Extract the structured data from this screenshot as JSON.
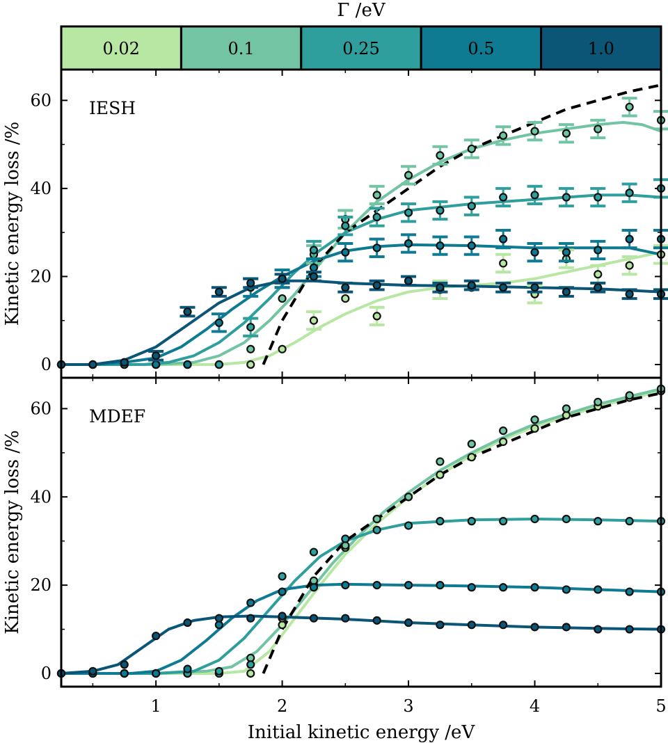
{
  "colorbar": {
    "title": "Γ /eV",
    "entries": [
      {
        "label": "0.02",
        "color": "#b8e6a3"
      },
      {
        "label": "0.1",
        "color": "#72c4a2"
      },
      {
        "label": "0.25",
        "color": "#2e9f9c"
      },
      {
        "label": "0.5",
        "color": "#0e7b92"
      },
      {
        "label": "1.0",
        "color": "#0b5576"
      }
    ]
  },
  "chart_data": [
    {
      "type": "line",
      "panel_label": "IESH",
      "xlabel": "",
      "ylabel": "Kinetic energy loss /%",
      "xlim": [
        0.25,
        5.0
      ],
      "ylim": [
        -3,
        67
      ],
      "xticks": [
        1,
        2,
        3,
        4,
        5
      ],
      "yticks": [
        0,
        20,
        40,
        60
      ],
      "reference_curve": {
        "style": "dashed-black",
        "x": [
          1.85,
          2.0,
          2.25,
          2.5,
          2.75,
          3.0,
          3.25,
          3.5,
          3.75,
          4.0,
          4.25,
          4.5,
          4.75,
          5.0
        ],
        "y": [
          0,
          10,
          22,
          30,
          35,
          40,
          45,
          49,
          52,
          55,
          58,
          60,
          62,
          63.5
        ]
      },
      "series": [
        {
          "name": "0.02",
          "x": [
            0.25,
            0.5,
            0.75,
            1.0,
            1.25,
            1.5,
            1.75,
            2.0,
            2.25,
            2.5,
            2.75,
            3.0,
            3.25,
            3.5,
            3.75,
            4.0,
            4.25,
            4.5,
            4.75,
            5.0
          ],
          "points": [
            0,
            0,
            0,
            0,
            0,
            0,
            0,
            3.5,
            10,
            15,
            11,
            19,
            17,
            17.5,
            23,
            16,
            24,
            20.5,
            22.5,
            25
          ],
          "errors": [
            0,
            0,
            0,
            0,
            0,
            0,
            0,
            0,
            2,
            0,
            2,
            0,
            2,
            0,
            2,
            2,
            2,
            2,
            2,
            2
          ],
          "fit_x": [
            0.25,
            1.0,
            1.5,
            1.7,
            1.9,
            2.1,
            2.3,
            2.5,
            2.75,
            3.0,
            3.25,
            3.5,
            3.75,
            4.0,
            4.25,
            4.5,
            4.75,
            5.0
          ],
          "fit_y": [
            0,
            0,
            0,
            0.5,
            2,
            5,
            8.5,
            11.5,
            14.5,
            16.5,
            17.5,
            18,
            18.5,
            19.5,
            21,
            22.5,
            24,
            25.5
          ]
        },
        {
          "name": "0.1",
          "x": [
            0.25,
            0.5,
            0.75,
            1.0,
            1.25,
            1.5,
            1.75,
            2.0,
            2.25,
            2.5,
            2.75,
            3.0,
            3.25,
            3.5,
            3.75,
            4.0,
            4.25,
            4.5,
            4.75,
            5.0
          ],
          "points": [
            0,
            0,
            0,
            0,
            0,
            0,
            3.5,
            15,
            25,
            33,
            38.5,
            43,
            47.5,
            49,
            52,
            53,
            52.5,
            53.5,
            58.5,
            55.5
          ],
          "errors": [
            0,
            0,
            0,
            0,
            0,
            0,
            0,
            0,
            2,
            2,
            2,
            2,
            2,
            2,
            2,
            2,
            2,
            2,
            2,
            2
          ],
          "fit_x": [
            0.25,
            1.0,
            1.3,
            1.5,
            1.7,
            1.9,
            2.1,
            2.3,
            2.5,
            2.75,
            3.0,
            3.25,
            3.5,
            3.75,
            4.0,
            4.25,
            4.5,
            4.7,
            4.85,
            5.0
          ],
          "fit_y": [
            0,
            0,
            0.5,
            2,
            5,
            10,
            16,
            23,
            30,
            37,
            42,
            46,
            49,
            51,
            52.5,
            53.5,
            54.5,
            55,
            54.5,
            53
          ]
        },
        {
          "name": "0.25",
          "x": [
            0.25,
            0.5,
            0.75,
            1.0,
            1.25,
            1.5,
            1.75,
            2.0,
            2.25,
            2.5,
            2.75,
            3.0,
            3.25,
            3.5,
            3.75,
            4.0,
            4.25,
            4.5,
            4.75,
            5.0
          ],
          "points": [
            0,
            0,
            0,
            0,
            0,
            0,
            8.5,
            19.5,
            26,
            31.5,
            33.5,
            34.5,
            35,
            36,
            38,
            38.5,
            38,
            38,
            39,
            40
          ],
          "errors": [
            0,
            0,
            0,
            0,
            0,
            0,
            2,
            2,
            2,
            2,
            2,
            2,
            2,
            2,
            2,
            2,
            2,
            2,
            2,
            2
          ],
          "fit_x": [
            0.25,
            0.9,
            1.1,
            1.3,
            1.5,
            1.7,
            1.9,
            2.1,
            2.3,
            2.5,
            2.75,
            3.0,
            3.5,
            4.0,
            4.5,
            4.75,
            5.0
          ],
          "fit_y": [
            0,
            0,
            0.5,
            2,
            5,
            9.5,
            15,
            21,
            26,
            30,
            33,
            35,
            36.5,
            37.5,
            38.5,
            38.5,
            38
          ]
        },
        {
          "name": "0.5",
          "x": [
            0.25,
            0.5,
            0.75,
            1.0,
            1.25,
            1.5,
            1.75,
            2.0,
            2.25,
            2.5,
            2.75,
            3.0,
            3.25,
            3.5,
            3.75,
            4.0,
            4.25,
            4.5,
            4.75,
            5.0
          ],
          "points": [
            0,
            0,
            0.5,
            0,
            0,
            9.5,
            17.5,
            19.5,
            22,
            25.5,
            26.5,
            27.5,
            27,
            27,
            28.5,
            25.5,
            25.5,
            26,
            28.5,
            28.5
          ],
          "errors": [
            0,
            0,
            0,
            0,
            0,
            2,
            2,
            2,
            2,
            2,
            2,
            2,
            2,
            2,
            2,
            2,
            2,
            2,
            2,
            2
          ],
          "fit_x": [
            0.25,
            0.5,
            0.75,
            1.0,
            1.2,
            1.4,
            1.6,
            1.8,
            2.0,
            2.25,
            2.5,
            2.75,
            3.0,
            3.5,
            4.0,
            4.5,
            4.75,
            5.0
          ],
          "fit_y": [
            0,
            0,
            0.5,
            1.5,
            4,
            8,
            12.5,
            16.5,
            20,
            23.5,
            25.8,
            26.8,
            27.2,
            27,
            26.5,
            26.5,
            26.5,
            25
          ]
        },
        {
          "name": "1.0",
          "x": [
            0.25,
            0.5,
            0.75,
            1.0,
            1.25,
            1.5,
            1.75,
            2.0,
            2.25,
            2.5,
            2.75,
            3.0,
            3.25,
            3.5,
            3.75,
            4.0,
            4.25,
            4.5,
            4.75,
            5.0
          ],
          "points": [
            0,
            0,
            0.5,
            2,
            12,
            16.5,
            18.5,
            19.5,
            20,
            17.5,
            18,
            19,
            17.5,
            18,
            17.5,
            17.5,
            16.5,
            17.5,
            16,
            16
          ],
          "errors": [
            0,
            0,
            0,
            1,
            1,
            1,
            1,
            1,
            1,
            1,
            1,
            1,
            1,
            1,
            1,
            1,
            1,
            1,
            1,
            1
          ],
          "fit_x": [
            0.25,
            0.5,
            0.75,
            1.0,
            1.25,
            1.5,
            1.75,
            2.0,
            2.25,
            2.5,
            3.0,
            3.5,
            4.0,
            4.5,
            5.0
          ],
          "fit_y": [
            0,
            0,
            1,
            4,
            9,
            14,
            17.5,
            19,
            19,
            18.5,
            18,
            17.8,
            17.5,
            17.2,
            16.5
          ]
        }
      ]
    },
    {
      "type": "line",
      "panel_label": "MDEF",
      "xlabel": "Initial kinetic energy /eV",
      "ylabel": "Kinetic energy loss /%",
      "xlim": [
        0.25,
        5.0
      ],
      "ylim": [
        -3,
        67
      ],
      "xticks": [
        1,
        2,
        3,
        4,
        5
      ],
      "yticks": [
        0,
        20,
        40,
        60
      ],
      "reference_curve": {
        "style": "dashed-black",
        "x": [
          1.85,
          2.0,
          2.25,
          2.5,
          2.75,
          3.0,
          3.25,
          3.5,
          3.75,
          4.0,
          4.25,
          4.5,
          4.75,
          5.0
        ],
        "y": [
          0,
          10,
          22,
          30,
          35,
          40,
          45,
          49,
          52,
          55,
          58,
          60,
          62,
          63.5
        ]
      },
      "series": [
        {
          "name": "0.02",
          "x": [
            0.25,
            0.5,
            0.75,
            1.0,
            1.25,
            1.5,
            1.75,
            2.0,
            2.25,
            2.5,
            2.75,
            3.0,
            3.25,
            3.5,
            3.75,
            4.0,
            4.25,
            4.5,
            4.75,
            5.0
          ],
          "points": [
            0,
            0,
            0,
            0,
            0,
            0,
            0,
            11,
            20,
            28.5,
            35,
            40,
            45,
            49,
            52.5,
            55.5,
            58.5,
            60.5,
            62.5,
            64
          ],
          "fit_x": [
            0.25,
            1.0,
            1.5,
            1.7,
            1.9,
            2.1,
            2.3,
            2.5,
            2.75,
            3.0,
            3.25,
            3.5,
            3.75,
            4.0,
            4.5,
            5.0
          ],
          "fit_y": [
            0,
            0,
            0,
            0.5,
            5,
            12.5,
            20,
            27,
            34,
            40,
            45,
            49.5,
            53,
            56,
            60.5,
            64
          ]
        },
        {
          "name": "0.1",
          "x": [
            0.25,
            0.5,
            0.75,
            1.0,
            1.25,
            1.5,
            1.75,
            2.0,
            2.25,
            2.5,
            2.75,
            3.0,
            3.25,
            3.5,
            3.75,
            4.0,
            4.25,
            4.5,
            4.75,
            5.0
          ],
          "points": [
            0,
            0,
            0,
            0,
            0,
            0,
            3.5,
            12.5,
            21,
            29,
            35,
            40,
            48,
            52,
            55,
            57.5,
            60,
            61.5,
            63,
            64.5
          ],
          "fit_x": [
            0.25,
            1.0,
            1.4,
            1.6,
            1.8,
            2.0,
            2.2,
            2.4,
            2.6,
            2.8,
            3.0,
            3.25,
            3.5,
            3.75,
            4.0,
            4.5,
            5.0
          ],
          "fit_y": [
            0,
            0,
            0.5,
            1.5,
            5,
            11,
            18,
            25,
            31,
            36.5,
            41,
            46,
            50,
            53.5,
            56.5,
            61,
            64.5
          ]
        },
        {
          "name": "0.25",
          "x": [
            0.25,
            0.5,
            0.75,
            1.0,
            1.25,
            1.5,
            1.75,
            2.0,
            2.25,
            2.5,
            2.75,
            3.0,
            3.25,
            3.5,
            3.75,
            4.0,
            4.25,
            4.5,
            4.75,
            5.0
          ],
          "points": [
            0,
            0,
            0,
            0,
            0,
            0.5,
            2,
            22,
            27.5,
            30.5,
            32.5,
            33.5,
            34.5,
            34.5,
            34.5,
            35,
            35,
            34.5,
            34.5,
            34.5
          ],
          "fit_x": [
            0.25,
            1.0,
            1.3,
            1.5,
            1.7,
            1.9,
            2.1,
            2.3,
            2.5,
            2.75,
            3.0,
            3.5,
            4.0,
            4.5,
            5.0
          ],
          "fit_y": [
            0,
            0,
            0.5,
            3,
            8,
            14.5,
            21,
            26.5,
            30,
            32.5,
            34,
            34.8,
            35,
            34.8,
            34.5
          ]
        },
        {
          "name": "0.5",
          "x": [
            0.25,
            0.5,
            0.75,
            1.0,
            1.25,
            1.5,
            1.75,
            2.0,
            2.25,
            2.5,
            2.75,
            3.0,
            3.25,
            3.5,
            3.75,
            4.0,
            4.25,
            4.5,
            4.75,
            5.0
          ],
          "points": [
            0,
            0,
            0,
            0,
            1,
            11,
            16,
            18.5,
            19.5,
            20,
            20,
            20,
            20,
            19.5,
            19.5,
            19.5,
            19,
            19,
            18.5,
            18.5
          ],
          "fit_x": [
            0.25,
            0.8,
            1.0,
            1.2,
            1.4,
            1.6,
            1.8,
            2.0,
            2.25,
            2.5,
            3.0,
            3.5,
            4.0,
            4.5,
            5.0
          ],
          "fit_y": [
            0,
            0,
            0.5,
            3,
            7.5,
            12.5,
            16.5,
            19,
            20,
            20.2,
            20,
            19.8,
            19.5,
            19,
            18.5
          ]
        },
        {
          "name": "1.0",
          "x": [
            0.25,
            0.5,
            0.75,
            1.0,
            1.25,
            1.5,
            1.75,
            2.0,
            2.25,
            2.5,
            2.75,
            3.0,
            3.25,
            3.5,
            3.75,
            4.0,
            4.25,
            4.5,
            4.75,
            5.0
          ],
          "points": [
            0,
            0.5,
            2,
            8.5,
            11.5,
            12.5,
            12.5,
            13,
            12.5,
            12.5,
            12,
            11.5,
            11,
            11,
            11,
            10.5,
            10.5,
            10,
            10,
            10
          ],
          "fit_x": [
            0.25,
            0.5,
            0.7,
            0.9,
            1.1,
            1.3,
            1.5,
            1.75,
            2.0,
            2.5,
            3.0,
            3.5,
            4.0,
            4.5,
            5.0
          ],
          "fit_y": [
            0,
            0.5,
            2,
            6,
            10,
            12,
            12.8,
            13,
            12.8,
            12.3,
            11.5,
            11,
            10.5,
            10.2,
            10
          ]
        }
      ]
    }
  ]
}
